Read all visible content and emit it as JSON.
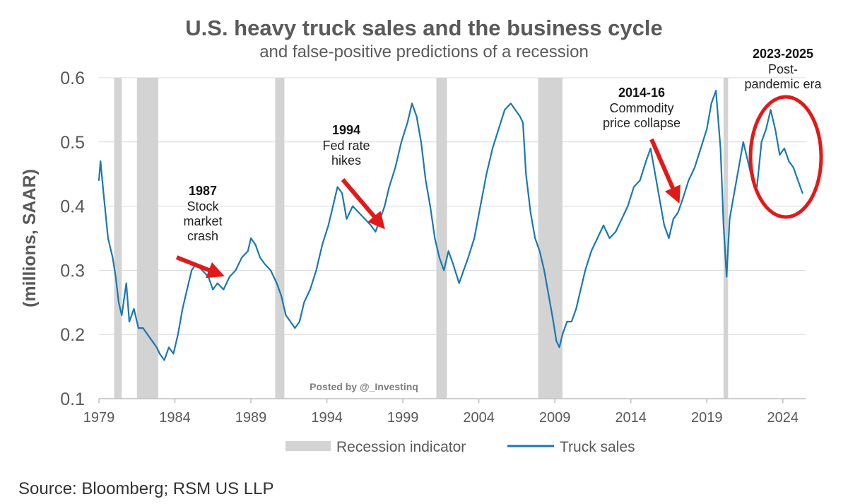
{
  "chart_data": {
    "type": "line",
    "title": "U.S. heavy truck sales and the business cycle",
    "subtitle": "and false-positive predictions of a recession",
    "ylabel": "(millions, SAAR)",
    "xlabel": "",
    "ylim": [
      0.1,
      0.6
    ],
    "xlim": [
      1979,
      2025.5
    ],
    "yticks": [
      "0.1",
      "0.2",
      "0.3",
      "0.4",
      "0.5",
      "0.6"
    ],
    "xticks": [
      "1979",
      "1984",
      "1989",
      "1994",
      "1999",
      "2004",
      "2009",
      "2014",
      "2019",
      "2024"
    ],
    "grid": true,
    "legend_position": "bottom",
    "legend": [
      {
        "name": "Recession indicator",
        "kind": "band",
        "color": "#d3d3d3"
      },
      {
        "name": "Truck sales",
        "kind": "line",
        "color": "#1b78b0"
      }
    ],
    "recession_indicator": [
      [
        1980.0,
        1980.5
      ],
      [
        1981.5,
        1982.9
      ],
      [
        1990.6,
        1991.2
      ],
      [
        2001.2,
        2001.9
      ],
      [
        2007.9,
        2009.5
      ],
      [
        2020.1,
        2020.4
      ]
    ],
    "series": [
      {
        "name": "Truck sales",
        "color": "#1b78b0",
        "x": [
          1979.0,
          1979.1,
          1979.3,
          1979.6,
          1979.9,
          1980.1,
          1980.3,
          1980.5,
          1980.8,
          1981.0,
          1981.3,
          1981.6,
          1981.9,
          1982.2,
          1982.5,
          1982.8,
          1983.0,
          1983.3,
          1983.6,
          1983.9,
          1984.2,
          1984.5,
          1984.8,
          1985.1,
          1985.4,
          1985.8,
          1986.2,
          1986.5,
          1986.8,
          1987.2,
          1987.6,
          1988.0,
          1988.4,
          1988.8,
          1989.0,
          1989.3,
          1989.6,
          1989.9,
          1990.3,
          1990.7,
          1991.0,
          1991.3,
          1991.6,
          1991.9,
          1992.2,
          1992.5,
          1992.9,
          1993.3,
          1993.7,
          1994.1,
          1994.4,
          1994.7,
          1995.0,
          1995.3,
          1995.7,
          1996.1,
          1996.5,
          1996.9,
          1997.2,
          1997.5,
          1997.8,
          1998.1,
          1998.5,
          1998.9,
          1999.3,
          1999.6,
          1999.9,
          2000.2,
          2000.5,
          2000.8,
          2001.1,
          2001.4,
          2001.7,
          2002.0,
          2002.3,
          2002.7,
          2003.0,
          2003.3,
          2003.7,
          2004.1,
          2004.5,
          2004.9,
          2005.3,
          2005.7,
          2006.1,
          2006.4,
          2006.7,
          2006.9,
          2007.1,
          2007.4,
          2007.7,
          2008.0,
          2008.3,
          2008.6,
          2008.9,
          2009.1,
          2009.3,
          2009.5,
          2009.8,
          2010.1,
          2010.4,
          2010.7,
          2011.0,
          2011.4,
          2011.8,
          2012.2,
          2012.6,
          2013.0,
          2013.4,
          2013.8,
          2014.2,
          2014.6,
          2015.0,
          2015.3,
          2015.6,
          2015.9,
          2016.2,
          2016.5,
          2016.8,
          2017.1,
          2017.4,
          2017.8,
          2018.2,
          2018.6,
          2019.0,
          2019.3,
          2019.6,
          2019.9,
          2020.1,
          2020.3,
          2020.5,
          2020.8,
          2021.1,
          2021.4,
          2021.7,
          2022.0,
          2022.3,
          2022.6,
          2022.9,
          2023.2,
          2023.5,
          2023.8,
          2024.1,
          2024.4,
          2024.7,
          2025.0,
          2025.3
        ],
        "values": [
          0.44,
          0.47,
          0.42,
          0.35,
          0.32,
          0.29,
          0.25,
          0.23,
          0.28,
          0.22,
          0.24,
          0.21,
          0.21,
          0.2,
          0.19,
          0.18,
          0.17,
          0.16,
          0.18,
          0.17,
          0.2,
          0.24,
          0.27,
          0.3,
          0.31,
          0.3,
          0.29,
          0.27,
          0.28,
          0.27,
          0.29,
          0.3,
          0.32,
          0.33,
          0.35,
          0.34,
          0.32,
          0.31,
          0.3,
          0.28,
          0.26,
          0.23,
          0.22,
          0.21,
          0.22,
          0.25,
          0.27,
          0.3,
          0.34,
          0.37,
          0.4,
          0.43,
          0.42,
          0.38,
          0.4,
          0.39,
          0.38,
          0.37,
          0.36,
          0.38,
          0.4,
          0.43,
          0.46,
          0.5,
          0.53,
          0.56,
          0.54,
          0.5,
          0.44,
          0.4,
          0.35,
          0.32,
          0.3,
          0.33,
          0.31,
          0.28,
          0.3,
          0.32,
          0.35,
          0.4,
          0.45,
          0.49,
          0.52,
          0.55,
          0.56,
          0.55,
          0.54,
          0.53,
          0.45,
          0.39,
          0.35,
          0.33,
          0.3,
          0.26,
          0.22,
          0.19,
          0.18,
          0.2,
          0.22,
          0.22,
          0.24,
          0.27,
          0.3,
          0.33,
          0.35,
          0.37,
          0.35,
          0.36,
          0.38,
          0.4,
          0.43,
          0.44,
          0.47,
          0.49,
          0.45,
          0.41,
          0.37,
          0.35,
          0.38,
          0.39,
          0.41,
          0.44,
          0.46,
          0.49,
          0.52,
          0.56,
          0.58,
          0.49,
          0.37,
          0.29,
          0.38,
          0.42,
          0.46,
          0.5,
          0.47,
          0.44,
          0.43,
          0.5,
          0.52,
          0.55,
          0.52,
          0.48,
          0.49,
          0.47,
          0.46,
          0.44,
          0.42
        ]
      }
    ],
    "annotations": [
      {
        "year": "1987",
        "text": "Stock\nmarket\ncrash",
        "arrow_to": [
          1986.8,
          0.295
        ]
      },
      {
        "year": "1994",
        "text": "Fed rate\nhikes",
        "arrow_to": [
          1997.5,
          0.373
        ]
      },
      {
        "year": "2014-16",
        "text": "Commodity\nprice collapse",
        "arrow_to": [
          2017.0,
          0.415
        ]
      },
      {
        "year": "2023-2025",
        "text": "Post-\npandemic era",
        "highlight": "ellipse"
      }
    ],
    "watermark": "Posted by @_Investinq",
    "source": "Source: Bloomberg; RSM US LLP"
  },
  "colors": {
    "line": "#1b78b0",
    "recession": "#d3d3d3",
    "arrow": "#e01a1a",
    "grid": "#d9d9d9",
    "axis_text": "#595959"
  }
}
